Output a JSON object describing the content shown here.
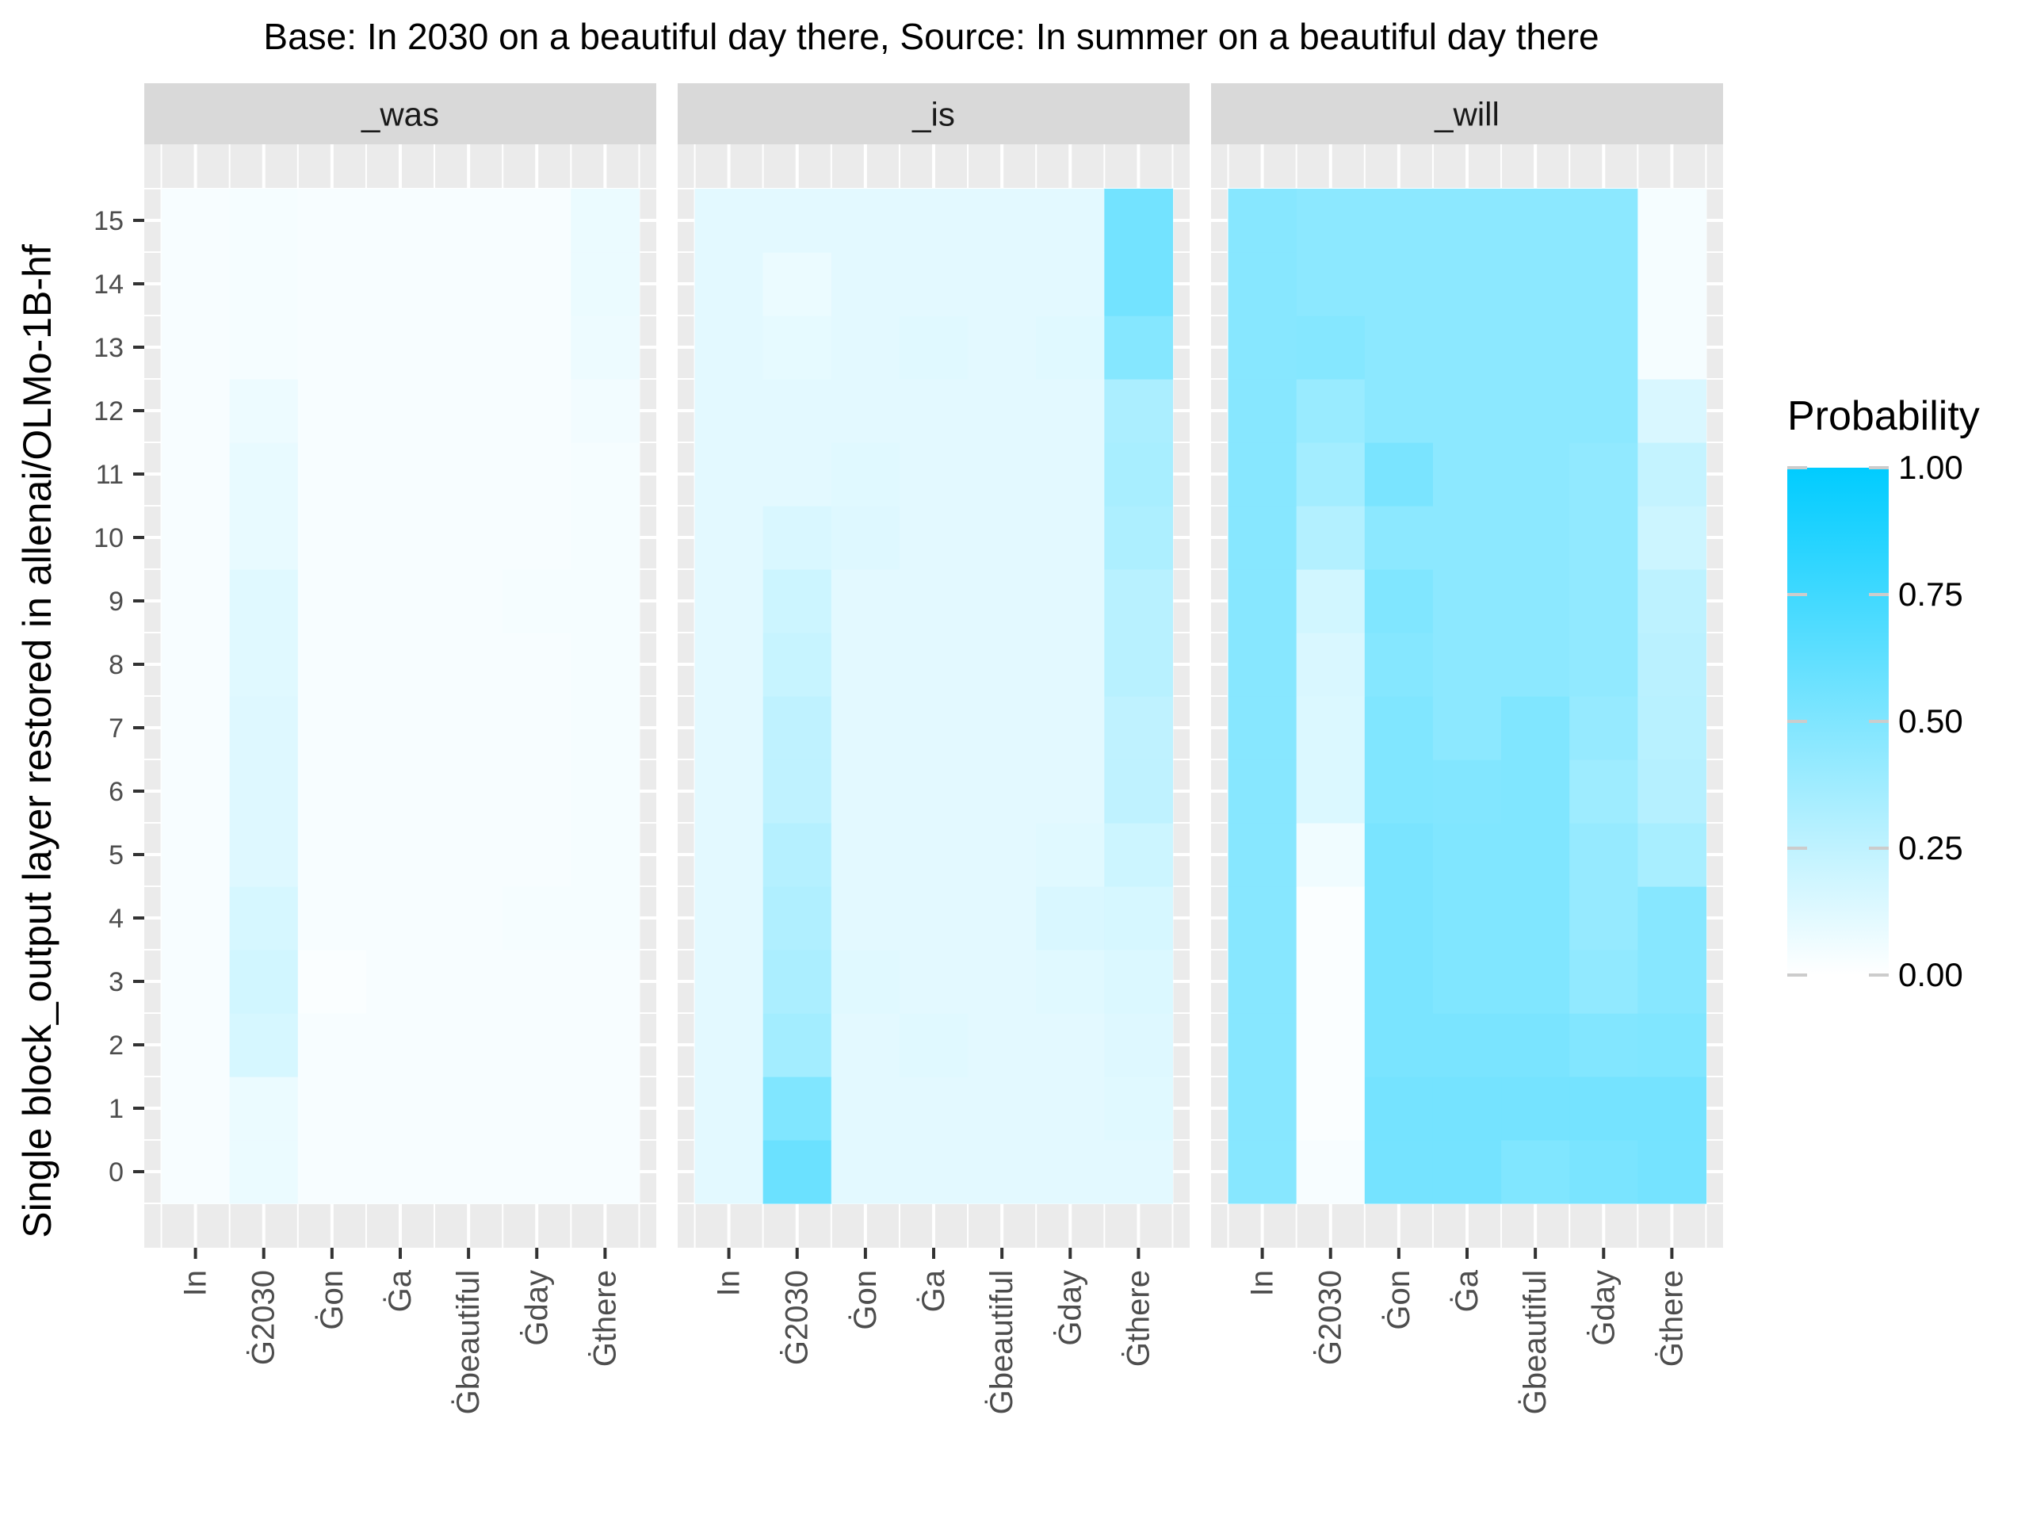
{
  "chart_data": {
    "type": "heatmap",
    "title": "Base: In 2030 on a beautiful day there, Source: In summer on a beautiful day there",
    "ylabel": "Single block_output layer restored in allenai/OLMo-1B-hf",
    "xlabel": "",
    "x_categories": [
      "In",
      "Ġ 2030",
      "Ġon",
      "Ġa",
      "Ġbeautiful",
      "Ġday",
      "Ġthere"
    ],
    "x_tick_labels": [
      "In",
      "Ġ2030",
      "Ġon",
      "Ġa",
      "Ġbeautiful",
      "Ġday",
      "Ġthere"
    ],
    "y_categories": [
      0,
      1,
      2,
      3,
      4,
      5,
      6,
      7,
      8,
      9,
      10,
      11,
      12,
      13,
      14,
      15
    ],
    "grid": true,
    "legend": {
      "title": "Probability",
      "placement": "right",
      "ticks": [
        "1.00",
        "0.75",
        "0.50",
        "0.25",
        "0.00"
      ],
      "tick_values": [
        1.0,
        0.75,
        0.5,
        0.25,
        0.0
      ],
      "low_color": "#ffffff",
      "high_color": "#00ccff",
      "range": [
        0,
        1
      ]
    },
    "panels": [
      {
        "label": "_was",
        "values": [
          [
            0.03,
            0.08,
            0.03,
            0.03,
            0.03,
            0.03,
            0.03
          ],
          [
            0.03,
            0.08,
            0.03,
            0.03,
            0.03,
            0.03,
            0.03
          ],
          [
            0.03,
            0.16,
            0.03,
            0.03,
            0.03,
            0.03,
            0.03
          ],
          [
            0.03,
            0.18,
            0.02,
            0.03,
            0.03,
            0.03,
            0.03
          ],
          [
            0.03,
            0.16,
            0.03,
            0.03,
            0.03,
            0.04,
            0.04
          ],
          [
            0.03,
            0.13,
            0.03,
            0.03,
            0.03,
            0.03,
            0.04
          ],
          [
            0.03,
            0.13,
            0.03,
            0.03,
            0.03,
            0.03,
            0.04
          ],
          [
            0.03,
            0.13,
            0.03,
            0.03,
            0.03,
            0.03,
            0.04
          ],
          [
            0.03,
            0.12,
            0.03,
            0.03,
            0.03,
            0.03,
            0.04
          ],
          [
            0.03,
            0.12,
            0.03,
            0.03,
            0.03,
            0.04,
            0.04
          ],
          [
            0.03,
            0.09,
            0.03,
            0.03,
            0.03,
            0.03,
            0.04
          ],
          [
            0.03,
            0.09,
            0.03,
            0.03,
            0.03,
            0.03,
            0.04
          ],
          [
            0.03,
            0.07,
            0.03,
            0.03,
            0.03,
            0.03,
            0.05
          ],
          [
            0.03,
            0.04,
            0.03,
            0.03,
            0.03,
            0.03,
            0.07
          ],
          [
            0.03,
            0.04,
            0.03,
            0.03,
            0.03,
            0.03,
            0.08
          ],
          [
            0.03,
            0.04,
            0.03,
            0.03,
            0.03,
            0.03,
            0.08
          ]
        ]
      },
      {
        "label": "_is",
        "values": [
          [
            0.11,
            0.58,
            0.11,
            0.11,
            0.11,
            0.11,
            0.11
          ],
          [
            0.11,
            0.5,
            0.11,
            0.11,
            0.11,
            0.11,
            0.12
          ],
          [
            0.11,
            0.36,
            0.11,
            0.12,
            0.11,
            0.11,
            0.13
          ],
          [
            0.11,
            0.33,
            0.12,
            0.11,
            0.11,
            0.12,
            0.14
          ],
          [
            0.11,
            0.31,
            0.11,
            0.11,
            0.11,
            0.15,
            0.16
          ],
          [
            0.11,
            0.29,
            0.11,
            0.11,
            0.11,
            0.12,
            0.2
          ],
          [
            0.11,
            0.25,
            0.11,
            0.11,
            0.11,
            0.11,
            0.25
          ],
          [
            0.11,
            0.25,
            0.11,
            0.11,
            0.11,
            0.11,
            0.25
          ],
          [
            0.11,
            0.22,
            0.11,
            0.11,
            0.11,
            0.11,
            0.28
          ],
          [
            0.11,
            0.2,
            0.11,
            0.11,
            0.11,
            0.11,
            0.28
          ],
          [
            0.11,
            0.15,
            0.13,
            0.11,
            0.11,
            0.11,
            0.32
          ],
          [
            0.11,
            0.11,
            0.12,
            0.11,
            0.11,
            0.11,
            0.34
          ],
          [
            0.11,
            0.11,
            0.11,
            0.11,
            0.11,
            0.11,
            0.33
          ],
          [
            0.11,
            0.1,
            0.11,
            0.12,
            0.11,
            0.12,
            0.48
          ],
          [
            0.11,
            0.08,
            0.11,
            0.11,
            0.11,
            0.11,
            0.55
          ],
          [
            0.11,
            0.11,
            0.11,
            0.11,
            0.11,
            0.11,
            0.55
          ]
        ]
      },
      {
        "label": "_will",
        "values": [
          [
            0.47,
            0.03,
            0.54,
            0.54,
            0.5,
            0.52,
            0.54
          ],
          [
            0.47,
            0.02,
            0.54,
            0.54,
            0.54,
            0.54,
            0.54
          ],
          [
            0.47,
            0.02,
            0.52,
            0.52,
            0.52,
            0.49,
            0.5
          ],
          [
            0.47,
            0.02,
            0.52,
            0.5,
            0.5,
            0.43,
            0.47
          ],
          [
            0.47,
            0.02,
            0.52,
            0.5,
            0.5,
            0.41,
            0.47
          ],
          [
            0.47,
            0.06,
            0.52,
            0.5,
            0.5,
            0.41,
            0.34
          ],
          [
            0.47,
            0.14,
            0.5,
            0.49,
            0.5,
            0.38,
            0.29
          ],
          [
            0.47,
            0.14,
            0.5,
            0.45,
            0.5,
            0.41,
            0.28
          ],
          [
            0.47,
            0.15,
            0.48,
            0.45,
            0.45,
            0.43,
            0.27
          ],
          [
            0.47,
            0.18,
            0.5,
            0.45,
            0.45,
            0.43,
            0.26
          ],
          [
            0.47,
            0.3,
            0.45,
            0.45,
            0.45,
            0.43,
            0.2
          ],
          [
            0.47,
            0.36,
            0.52,
            0.45,
            0.45,
            0.43,
            0.23
          ],
          [
            0.47,
            0.4,
            0.45,
            0.45,
            0.45,
            0.45,
            0.15
          ],
          [
            0.47,
            0.48,
            0.45,
            0.45,
            0.45,
            0.45,
            0.04
          ],
          [
            0.47,
            0.45,
            0.45,
            0.45,
            0.45,
            0.45,
            0.04
          ],
          [
            0.47,
            0.45,
            0.45,
            0.45,
            0.45,
            0.45,
            0.04
          ]
        ]
      }
    ]
  }
}
